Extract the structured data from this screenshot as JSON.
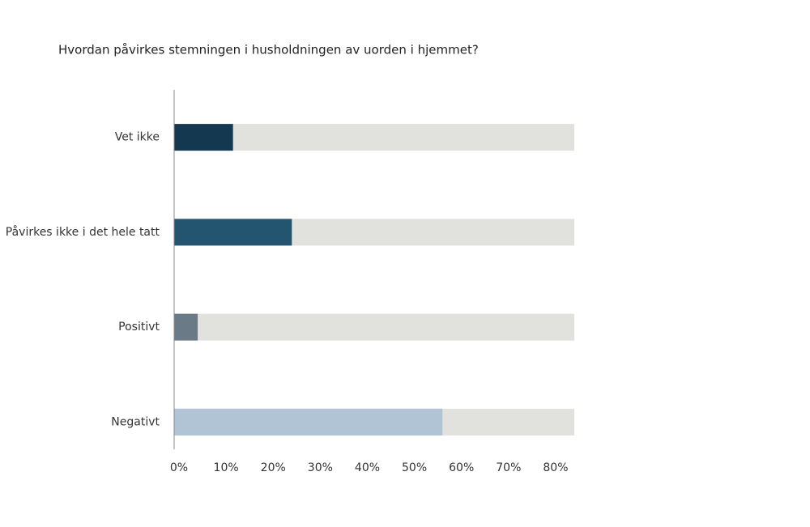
{
  "chart_data": {
    "type": "bar",
    "orientation": "horizontal",
    "title": "Hvordan påvirkes stemningen i husholdningen av uorden i hjemmet?",
    "categories": [
      "Vet ikke",
      "Påvirkes ikke i det hele tatt",
      "Positivt",
      "Negativt"
    ],
    "values": [
      12.5,
      25,
      5,
      57
    ],
    "colors": [
      "#14384f",
      "#235570",
      "#6b7a87",
      "#b0c4d6"
    ],
    "track_color": "#e1e1dd",
    "xlim": [
      0,
      85
    ],
    "xticks": [
      {
        "value": 0,
        "label": "0%"
      },
      {
        "value": 10,
        "label": "10%"
      },
      {
        "value": 20,
        "label": "20%"
      },
      {
        "value": 30,
        "label": "30%"
      },
      {
        "value": 40,
        "label": "40%"
      },
      {
        "value": 50,
        "label": "50%"
      },
      {
        "value": 60,
        "label": "60%"
      },
      {
        "value": 70,
        "label": "70%"
      },
      {
        "value": 80,
        "label": "80%"
      }
    ],
    "grid": false
  }
}
